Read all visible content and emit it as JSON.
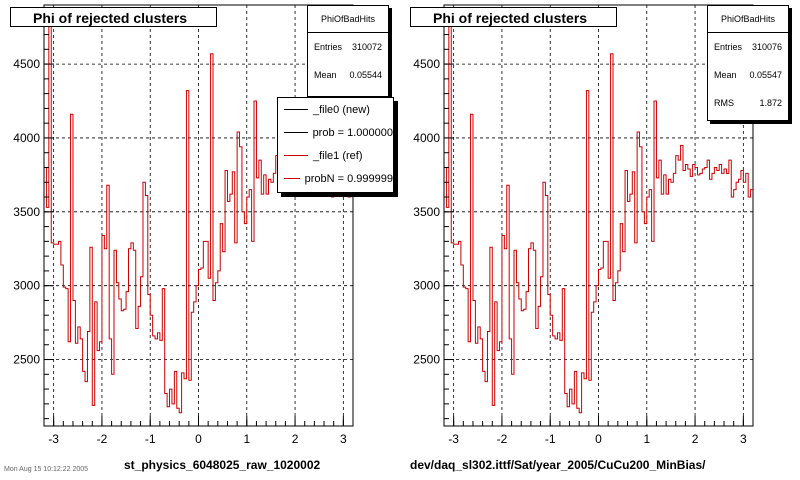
{
  "panels": [
    {
      "title": "Phi of rejected clusters",
      "stats": {
        "name": "PhiOfBadHits",
        "rows": [
          {
            "label": "Entries",
            "value": "310072"
          },
          {
            "label": "Mean",
            "value": "0.05544"
          }
        ]
      },
      "legend": [
        {
          "label": "_file0 (new)",
          "color": "#000000"
        },
        {
          "label": "prob = 1.000000",
          "color": "#000000"
        },
        {
          "label": "_file1 (ref)",
          "color": "#cc0000"
        },
        {
          "label": "probN = 0.999999",
          "color": "#cc0000"
        }
      ],
      "xlabel": "st_physics_6048025_raw_1020002"
    },
    {
      "title": "Phi of rejected clusters",
      "stats": {
        "name": "PhiOfBadHits",
        "rows": [
          {
            "label": "Entries",
            "value": "310076"
          },
          {
            "label": "Mean",
            "value": "0.05547"
          },
          {
            "label": "RMS",
            "value": "1.872"
          }
        ]
      },
      "legend": [],
      "xlabel": "dev/daq_sl302.ittf/Sat/year_2005/CuCu200_MinBias/"
    }
  ],
  "footnote": "Mon Aug 15 10:12:22 2005",
  "chart_data": [
    {
      "type": "bar",
      "title": "Phi of rejected clusters",
      "xlabel": "st_physics_6048025_raw_1020002",
      "ylabel": "",
      "xlim": [
        -3.2,
        3.2
      ],
      "ylim": [
        2050,
        4900
      ],
      "xticks": [
        -3,
        -2,
        -1,
        0,
        1,
        2,
        3
      ],
      "yticks": [
        2500,
        3000,
        3500,
        4000,
        4500
      ],
      "grid": true,
      "series_color": "#cc0000",
      "nbins": 128,
      "values": [
        3800,
        3530,
        4780,
        3290,
        3280,
        3280,
        3300,
        3140,
        2990,
        2980,
        2620,
        4160,
        2900,
        2610,
        2720,
        2640,
        2420,
        2350,
        2690,
        3260,
        2190,
        2890,
        2560,
        2620,
        3340,
        3250,
        3680,
        2640,
        2400,
        3240,
        3020,
        2910,
        2830,
        2840,
        2960,
        3250,
        3290,
        3240,
        2710,
        2860,
        3060,
        3700,
        3610,
        2940,
        2800,
        2660,
        2640,
        2680,
        2630,
        2980,
        2270,
        2180,
        2300,
        2200,
        2420,
        2170,
        2140,
        2410,
        2370,
        4320,
        2360,
        2820,
        2890,
        3000,
        3110,
        3120,
        3300,
        3300,
        3050,
        4570,
        2900,
        3020,
        3100,
        3420,
        3230,
        3780,
        3570,
        3620,
        3770,
        3290,
        4040,
        3940,
        3500,
        3420,
        3600,
        3650,
        3300,
        4250,
        3730,
        3850,
        3620,
        3750,
        3620,
        3720,
        3700,
        3760,
        3880,
        3850,
        3950,
        3780,
        3820,
        3790,
        3740,
        3820,
        3800,
        3750,
        3760,
        3790,
        3800,
        3850,
        3720,
        3760,
        3800,
        3780,
        3820,
        3760,
        3790,
        3760,
        3850,
        3600,
        3650,
        3700,
        3720,
        3780,
        3700,
        3760,
        3600,
        3650
      ]
    },
    {
      "type": "bar",
      "title": "Phi of rejected clusters",
      "xlabel": "dev/daq_sl302.ittf/Sat/year_2005/CuCu200_MinBias/",
      "ylabel": "",
      "xlim": [
        -3.2,
        3.2
      ],
      "ylim": [
        2050,
        4900
      ],
      "xticks": [
        -3,
        -2,
        -1,
        0,
        1,
        2,
        3
      ],
      "yticks": [
        2500,
        3000,
        3500,
        4000,
        4500
      ],
      "grid": true,
      "series_color": "#cc0000",
      "nbins": 128,
      "values": [
        3800,
        3530,
        4780,
        3290,
        3280,
        3280,
        3300,
        3140,
        2990,
        2980,
        2620,
        4160,
        2900,
        2610,
        2720,
        2640,
        2420,
        2350,
        2690,
        3260,
        2190,
        2890,
        2560,
        2620,
        3340,
        3250,
        3680,
        2640,
        2400,
        3240,
        3020,
        2910,
        2830,
        2840,
        2960,
        3250,
        3290,
        3240,
        2710,
        2860,
        3060,
        3700,
        3610,
        2940,
        2800,
        2660,
        2640,
        2680,
        2630,
        2980,
        2270,
        2180,
        2300,
        2200,
        2420,
        2170,
        2140,
        2410,
        2370,
        4320,
        2360,
        2820,
        2890,
        3000,
        3110,
        3120,
        3300,
        3300,
        3050,
        4570,
        2900,
        3020,
        3100,
        3420,
        3230,
        3780,
        3570,
        3620,
        3770,
        3290,
        4040,
        3940,
        3500,
        3420,
        3600,
        3650,
        3300,
        4250,
        3730,
        3850,
        3620,
        3750,
        3620,
        3720,
        3700,
        3760,
        3880,
        3850,
        3950,
        3780,
        3820,
        3790,
        3740,
        3820,
        3800,
        3750,
        3760,
        3790,
        3800,
        3850,
        3720,
        3760,
        3800,
        3780,
        3820,
        3760,
        3790,
        3760,
        3850,
        3600,
        3650,
        3700,
        3720,
        3780,
        3700,
        3760,
        3600,
        3650
      ]
    }
  ]
}
